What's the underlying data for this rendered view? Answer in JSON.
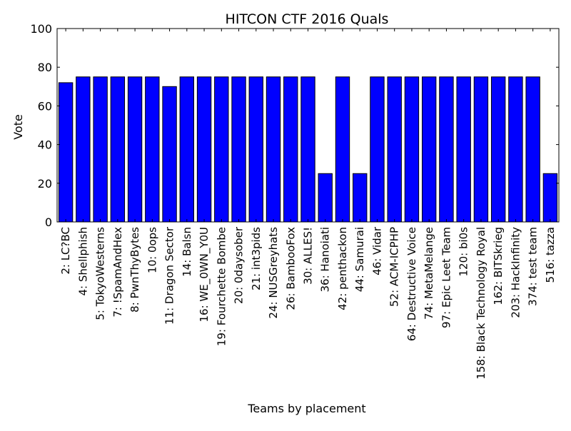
{
  "chart_data": {
    "type": "bar",
    "title": "HITCON CTF 2016 Quals",
    "xlabel": "Teams by placement",
    "ylabel": "Vote",
    "ylim": [
      0,
      100
    ],
    "yticks": [
      0,
      20,
      40,
      60,
      80,
      100
    ],
    "grid": false,
    "bar_color": "#0000ff",
    "categories": [
      "2: LC?BC",
      "4: Shellphish",
      "5: TokyoWesterns",
      "7: !SpamAndHex",
      "8: PwnThyBytes",
      "10: 0ops",
      "11: Dragon Sector",
      "14: Balsn",
      "16: WE_0WN_Y0U",
      "19: Fourchette Bombe",
      "20: 0daysober",
      "21: int3pids",
      "24: NUSGreyhats",
      "26: BambooFox",
      "30: ALLES!",
      "36: Hanoiati",
      "42: penthackon",
      "44: Samurai",
      "46: Vidar",
      "52: ACM-ICPHP",
      "64: Destructive Voice",
      "74: MetaMelange",
      "97: Epic Leet Team",
      "120: bi0s",
      "158: Black Technology Royal",
      "162: BITSkrieg",
      "203: HackInfinity",
      "374: test team",
      "516: tazza"
    ],
    "values": [
      72,
      75,
      75,
      75,
      75,
      75,
      70,
      75,
      75,
      75,
      75,
      75,
      75,
      75,
      75,
      25,
      75,
      25,
      75,
      75,
      75,
      75,
      75,
      75,
      75,
      75,
      75,
      75,
      25
    ]
  }
}
